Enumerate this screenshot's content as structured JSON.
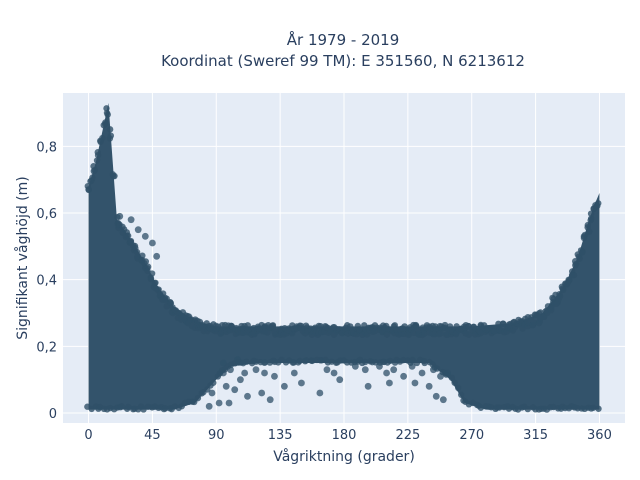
{
  "chart_data": {
    "type": "scatter",
    "title": "År 1979 - 2019",
    "subtitle": "Koordinat (Sweref 99 TM): E 351560, N 6213612",
    "xlabel": "Vågriktning (grader)",
    "ylabel": "Signifikant våghöjd (m)",
    "xlim": [
      -18,
      378
    ],
    "ylim": [
      -0.03,
      0.96
    ],
    "xticks": [
      0,
      45,
      90,
      135,
      180,
      225,
      270,
      315,
      360
    ],
    "yticks": [
      0,
      0.2,
      0.4,
      0.6,
      0.8
    ],
    "ytick_labels": [
      "0",
      "0,2",
      "0,4",
      "0,6",
      "0,8"
    ],
    "grid": true,
    "marker_color": "#2f5068",
    "plot_bg": "#e5ecf6",
    "envelope": [
      [
        0,
        0.68
      ],
      [
        5,
        0.75
      ],
      [
        10,
        0.85
      ],
      [
        14,
        0.93
      ],
      [
        20,
        0.58
      ],
      [
        30,
        0.52
      ],
      [
        40,
        0.45
      ],
      [
        50,
        0.37
      ],
      [
        60,
        0.32
      ],
      [
        70,
        0.29
      ],
      [
        80,
        0.27
      ],
      [
        90,
        0.26
      ],
      [
        120,
        0.26
      ],
      [
        150,
        0.26
      ],
      [
        180,
        0.26
      ],
      [
        210,
        0.26
      ],
      [
        240,
        0.26
      ],
      [
        270,
        0.26
      ],
      [
        300,
        0.27
      ],
      [
        320,
        0.3
      ],
      [
        335,
        0.38
      ],
      [
        345,
        0.47
      ],
      [
        352,
        0.57
      ],
      [
        356,
        0.62
      ],
      [
        360,
        0.66
      ]
    ],
    "band_bottom": [
      [
        0,
        0.01
      ],
      [
        60,
        0.01
      ],
      [
        75,
        0.03
      ],
      [
        90,
        0.1
      ],
      [
        100,
        0.14
      ],
      [
        120,
        0.15
      ],
      [
        180,
        0.15
      ],
      [
        240,
        0.15
      ],
      [
        255,
        0.1
      ],
      [
        265,
        0.03
      ],
      [
        280,
        0.01
      ],
      [
        360,
        0.01
      ]
    ],
    "scattered_points": [
      [
        95,
        0.12
      ],
      [
        97,
        0.08
      ],
      [
        100,
        0.13
      ],
      [
        103,
        0.07
      ],
      [
        107,
        0.1
      ],
      [
        110,
        0.12
      ],
      [
        112,
        0.05
      ],
      [
        118,
        0.13
      ],
      [
        122,
        0.06
      ],
      [
        124,
        0.12
      ],
      [
        128,
        0.04
      ],
      [
        131,
        0.11
      ],
      [
        138,
        0.08
      ],
      [
        145,
        0.12
      ],
      [
        150,
        0.09
      ],
      [
        163,
        0.06
      ],
      [
        168,
        0.13
      ],
      [
        173,
        0.12
      ],
      [
        177,
        0.1
      ],
      [
        188,
        0.14
      ],
      [
        195,
        0.13
      ],
      [
        197,
        0.08
      ],
      [
        205,
        0.14
      ],
      [
        210,
        0.12
      ],
      [
        212,
        0.09
      ],
      [
        215,
        0.13
      ],
      [
        222,
        0.11
      ],
      [
        228,
        0.14
      ],
      [
        230,
        0.09
      ],
      [
        235,
        0.12
      ],
      [
        240,
        0.08
      ],
      [
        243,
        0.13
      ],
      [
        245,
        0.05
      ],
      [
        248,
        0.11
      ],
      [
        250,
        0.04
      ],
      [
        253,
        0.12
      ],
      [
        87,
        0.06
      ],
      [
        85,
        0.02
      ],
      [
        92,
        0.03
      ],
      [
        99,
        0.03
      ],
      [
        35,
        0.55
      ],
      [
        30,
        0.58
      ],
      [
        45,
        0.51
      ],
      [
        22,
        0.59
      ],
      [
        40,
        0.53
      ],
      [
        48,
        0.47
      ],
      [
        95,
        0.15
      ],
      [
        105,
        0.16
      ]
    ]
  }
}
